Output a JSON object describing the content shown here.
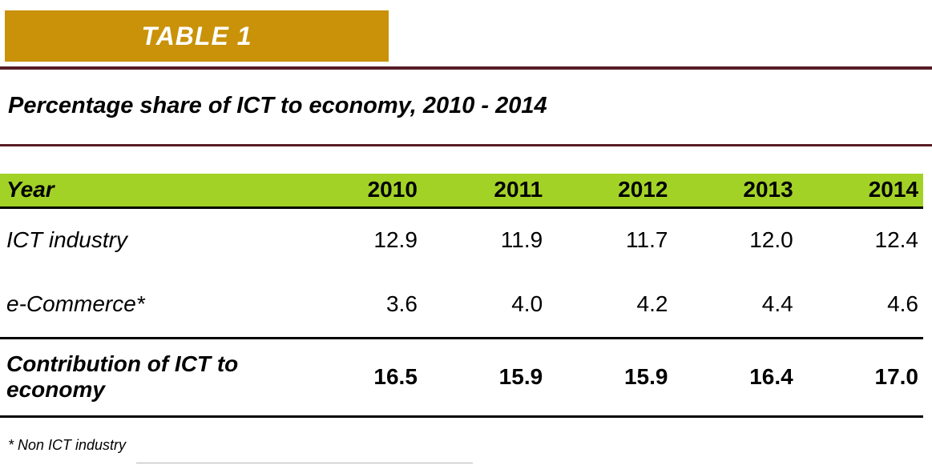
{
  "header": {
    "badge": "TABLE 1",
    "title": "Percentage share of ICT to economy, 2010 - 2014"
  },
  "colors": {
    "badge_gold": "#C99208",
    "rule_maroon": "#571C24",
    "header_green": "#A3D227"
  },
  "chart_data": {
    "type": "table",
    "title": "Percentage share of ICT to economy, 2010 - 2014",
    "columns": [
      "Year",
      "2010",
      "2011",
      "2012",
      "2013",
      "2014"
    ],
    "rows": [
      {
        "label": "ICT industry",
        "values": [
          "12.9",
          "11.9",
          "11.7",
          "12.0",
          "12.4"
        ],
        "emphasis": false
      },
      {
        "label": "e-Commerce*",
        "values": [
          "3.6",
          "4.0",
          "4.2",
          "4.4",
          "4.6"
        ],
        "emphasis": false
      },
      {
        "label": "Contribution of ICT to economy",
        "values": [
          "16.5",
          "15.9",
          "15.9",
          "16.4",
          "17.0"
        ],
        "emphasis": true
      }
    ],
    "footnote": "* Non ICT industry"
  }
}
